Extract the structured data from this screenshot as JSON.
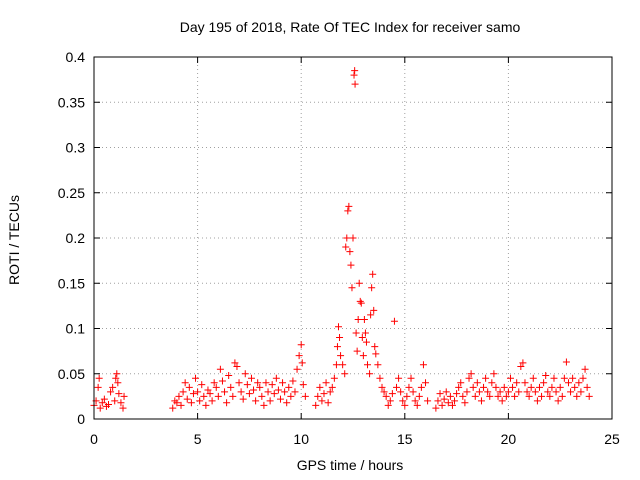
{
  "chart_data": {
    "type": "scatter",
    "title": "Day 195 of 2018, Rate Of TEC Index for receiver samo",
    "xlabel": "GPS time / hours",
    "ylabel": "ROTI / TECUs",
    "xlim": [
      0,
      25
    ],
    "ylim": [
      0,
      0.4
    ],
    "xticks": [
      0,
      5,
      10,
      15,
      20,
      25
    ],
    "xtick_labels": [
      "0",
      "5",
      "10",
      "15",
      "20",
      "25"
    ],
    "yticks": [
      0,
      0.05,
      0.1,
      0.15,
      0.2,
      0.25,
      0.3,
      0.35,
      0.4
    ],
    "ytick_labels": [
      "0",
      "0.05",
      "0.1",
      "0.15",
      "0.2",
      "0.25",
      "0.3",
      "0.35",
      "0.4"
    ],
    "grid": true,
    "marker": "+",
    "series": [
      {
        "name": "ROTI",
        "color": "#ff0000",
        "points": [
          [
            0.0,
            0.015
          ],
          [
            0.1,
            0.02
          ],
          [
            0.2,
            0.035
          ],
          [
            0.25,
            0.045
          ],
          [
            0.3,
            0.012
          ],
          [
            0.4,
            0.018
          ],
          [
            0.5,
            0.022
          ],
          [
            0.6,
            0.014
          ],
          [
            0.7,
            0.016
          ],
          [
            0.8,
            0.03
          ],
          [
            0.9,
            0.035
          ],
          [
            1.0,
            0.02
          ],
          [
            1.05,
            0.045
          ],
          [
            1.1,
            0.05
          ],
          [
            1.15,
            0.04
          ],
          [
            1.2,
            0.028
          ],
          [
            1.3,
            0.018
          ],
          [
            1.4,
            0.012
          ],
          [
            1.45,
            0.025
          ],
          [
            3.8,
            0.012
          ],
          [
            3.9,
            0.02
          ],
          [
            4.0,
            0.018
          ],
          [
            4.1,
            0.025
          ],
          [
            4.2,
            0.015
          ],
          [
            4.3,
            0.03
          ],
          [
            4.4,
            0.04
          ],
          [
            4.5,
            0.022
          ],
          [
            4.6,
            0.035
          ],
          [
            4.7,
            0.018
          ],
          [
            4.8,
            0.028
          ],
          [
            4.9,
            0.045
          ],
          [
            5.0,
            0.03
          ],
          [
            5.1,
            0.02
          ],
          [
            5.2,
            0.038
          ],
          [
            5.3,
            0.025
          ],
          [
            5.4,
            0.015
          ],
          [
            5.5,
            0.032
          ],
          [
            5.6,
            0.028
          ],
          [
            5.7,
            0.02
          ],
          [
            5.8,
            0.04
          ],
          [
            5.9,
            0.035
          ],
          [
            6.0,
            0.025
          ],
          [
            6.1,
            0.055
          ],
          [
            6.2,
            0.042
          ],
          [
            6.3,
            0.03
          ],
          [
            6.4,
            0.018
          ],
          [
            6.5,
            0.048
          ],
          [
            6.6,
            0.035
          ],
          [
            6.7,
            0.025
          ],
          [
            6.8,
            0.062
          ],
          [
            6.9,
            0.058
          ],
          [
            7.0,
            0.04
          ],
          [
            7.1,
            0.03
          ],
          [
            7.2,
            0.022
          ],
          [
            7.3,
            0.05
          ],
          [
            7.4,
            0.038
          ],
          [
            7.5,
            0.028
          ],
          [
            7.6,
            0.045
          ],
          [
            7.7,
            0.032
          ],
          [
            7.8,
            0.02
          ],
          [
            7.9,
            0.04
          ],
          [
            8.0,
            0.035
          ],
          [
            8.1,
            0.025
          ],
          [
            8.2,
            0.015
          ],
          [
            8.3,
            0.04
          ],
          [
            8.4,
            0.03
          ],
          [
            8.5,
            0.02
          ],
          [
            8.6,
            0.038
          ],
          [
            8.7,
            0.028
          ],
          [
            8.8,
            0.045
          ],
          [
            8.9,
            0.032
          ],
          [
            9.0,
            0.022
          ],
          [
            9.1,
            0.04
          ],
          [
            9.2,
            0.03
          ],
          [
            9.3,
            0.018
          ],
          [
            9.4,
            0.035
          ],
          [
            9.5,
            0.025
          ],
          [
            9.6,
            0.042
          ],
          [
            9.7,
            0.03
          ],
          [
            9.8,
            0.055
          ],
          [
            9.9,
            0.07
          ],
          [
            10.0,
            0.082
          ],
          [
            10.05,
            0.062
          ],
          [
            10.1,
            0.038
          ],
          [
            10.2,
            0.025
          ],
          [
            10.7,
            0.015
          ],
          [
            10.8,
            0.025
          ],
          [
            10.9,
            0.035
          ],
          [
            11.0,
            0.02
          ],
          [
            11.1,
            0.028
          ],
          [
            11.2,
            0.04
          ],
          [
            11.3,
            0.018
          ],
          [
            11.4,
            0.03
          ],
          [
            11.5,
            0.035
          ],
          [
            11.6,
            0.045
          ],
          [
            11.7,
            0.06
          ],
          [
            11.75,
            0.08
          ],
          [
            11.8,
            0.102
          ],
          [
            11.85,
            0.09
          ],
          [
            11.9,
            0.07
          ],
          [
            12.0,
            0.06
          ],
          [
            12.1,
            0.05
          ],
          [
            12.15,
            0.19
          ],
          [
            12.2,
            0.2
          ],
          [
            12.25,
            0.23
          ],
          [
            12.3,
            0.235
          ],
          [
            12.35,
            0.185
          ],
          [
            12.4,
            0.17
          ],
          [
            12.45,
            0.145
          ],
          [
            12.5,
            0.2
          ],
          [
            12.55,
            0.38
          ],
          [
            12.58,
            0.385
          ],
          [
            12.6,
            0.37
          ],
          [
            12.65,
            0.095
          ],
          [
            12.7,
            0.075
          ],
          [
            12.75,
            0.11
          ],
          [
            12.8,
            0.15
          ],
          [
            12.85,
            0.13
          ],
          [
            12.9,
            0.128
          ],
          [
            12.95,
            0.09
          ],
          [
            13.0,
            0.07
          ],
          [
            13.05,
            0.11
          ],
          [
            13.1,
            0.095
          ],
          [
            13.15,
            0.085
          ],
          [
            13.2,
            0.06
          ],
          [
            13.3,
            0.05
          ],
          [
            13.35,
            0.115
          ],
          [
            13.4,
            0.145
          ],
          [
            13.45,
            0.16
          ],
          [
            13.5,
            0.12
          ],
          [
            13.55,
            0.08
          ],
          [
            13.6,
            0.072
          ],
          [
            13.7,
            0.06
          ],
          [
            13.8,
            0.045
          ],
          [
            13.9,
            0.035
          ],
          [
            14.0,
            0.03
          ],
          [
            14.1,
            0.025
          ],
          [
            14.2,
            0.015
          ],
          [
            14.3,
            0.02
          ],
          [
            14.4,
            0.028
          ],
          [
            14.5,
            0.108
          ],
          [
            14.6,
            0.035
          ],
          [
            14.7,
            0.045
          ],
          [
            14.8,
            0.03
          ],
          [
            14.9,
            0.02
          ],
          [
            15.0,
            0.015
          ],
          [
            15.1,
            0.025
          ],
          [
            15.2,
            0.035
          ],
          [
            15.3,
            0.045
          ],
          [
            15.4,
            0.03
          ],
          [
            15.5,
            0.02
          ],
          [
            15.6,
            0.015
          ],
          [
            15.7,
            0.025
          ],
          [
            15.8,
            0.035
          ],
          [
            15.9,
            0.06
          ],
          [
            16.0,
            0.04
          ],
          [
            16.1,
            0.02
          ],
          [
            16.5,
            0.012
          ],
          [
            16.6,
            0.02
          ],
          [
            16.7,
            0.028
          ],
          [
            16.8,
            0.015
          ],
          [
            16.9,
            0.022
          ],
          [
            17.0,
            0.03
          ],
          [
            17.1,
            0.018
          ],
          [
            17.2,
            0.025
          ],
          [
            17.3,
            0.015
          ],
          [
            17.4,
            0.02
          ],
          [
            17.5,
            0.028
          ],
          [
            17.6,
            0.035
          ],
          [
            17.7,
            0.04
          ],
          [
            17.8,
            0.025
          ],
          [
            17.9,
            0.018
          ],
          [
            18.0,
            0.03
          ],
          [
            18.1,
            0.045
          ],
          [
            18.2,
            0.05
          ],
          [
            18.3,
            0.035
          ],
          [
            18.4,
            0.025
          ],
          [
            18.5,
            0.04
          ],
          [
            18.6,
            0.03
          ],
          [
            18.7,
            0.02
          ],
          [
            18.8,
            0.035
          ],
          [
            18.9,
            0.045
          ],
          [
            19.0,
            0.03
          ],
          [
            19.1,
            0.025
          ],
          [
            19.2,
            0.04
          ],
          [
            19.3,
            0.05
          ],
          [
            19.4,
            0.035
          ],
          [
            19.5,
            0.025
          ],
          [
            19.6,
            0.03
          ],
          [
            19.7,
            0.02
          ],
          [
            19.8,
            0.035
          ],
          [
            19.9,
            0.025
          ],
          [
            20.0,
            0.03
          ],
          [
            20.1,
            0.045
          ],
          [
            20.2,
            0.035
          ],
          [
            20.3,
            0.025
          ],
          [
            20.4,
            0.04
          ],
          [
            20.5,
            0.03
          ],
          [
            20.6,
            0.058
          ],
          [
            20.7,
            0.062
          ],
          [
            20.8,
            0.04
          ],
          [
            20.9,
            0.03
          ],
          [
            21.0,
            0.025
          ],
          [
            21.1,
            0.035
          ],
          [
            21.2,
            0.045
          ],
          [
            21.3,
            0.03
          ],
          [
            21.4,
            0.02
          ],
          [
            21.5,
            0.035
          ],
          [
            21.6,
            0.025
          ],
          [
            21.7,
            0.04
          ],
          [
            21.8,
            0.048
          ],
          [
            21.9,
            0.03
          ],
          [
            22.0,
            0.025
          ],
          [
            22.1,
            0.035
          ],
          [
            22.2,
            0.045
          ],
          [
            22.3,
            0.03
          ],
          [
            22.4,
            0.02
          ],
          [
            22.5,
            0.035
          ],
          [
            22.6,
            0.025
          ],
          [
            22.7,
            0.045
          ],
          [
            22.8,
            0.063
          ],
          [
            22.9,
            0.04
          ],
          [
            23.0,
            0.03
          ],
          [
            23.1,
            0.045
          ],
          [
            23.2,
            0.035
          ],
          [
            23.3,
            0.025
          ],
          [
            23.4,
            0.04
          ],
          [
            23.5,
            0.03
          ],
          [
            23.6,
            0.045
          ],
          [
            23.7,
            0.055
          ],
          [
            23.8,
            0.035
          ],
          [
            23.9,
            0.025
          ]
        ]
      }
    ]
  }
}
